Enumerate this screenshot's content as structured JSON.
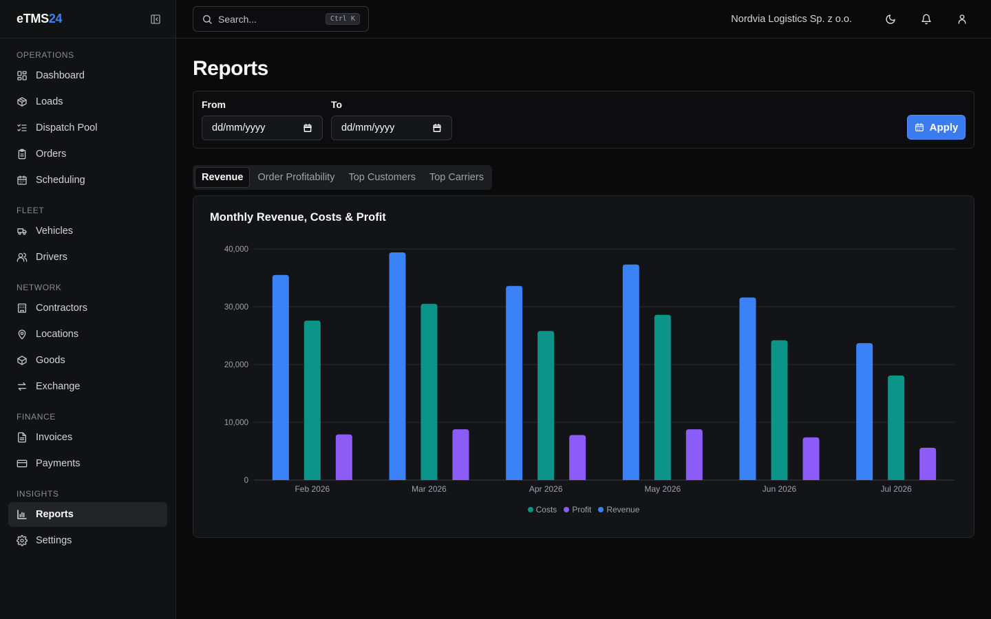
{
  "brand": {
    "name": "eTMS",
    "suffix": "24"
  },
  "sidebar": {
    "sections": [
      {
        "label": "OPERATIONS",
        "items": [
          {
            "label": "Dashboard",
            "icon": "dashboard-icon"
          },
          {
            "label": "Loads",
            "icon": "package-icon"
          },
          {
            "label": "Dispatch Pool",
            "icon": "list-checks-icon"
          },
          {
            "label": "Orders",
            "icon": "clipboard-icon"
          },
          {
            "label": "Scheduling",
            "icon": "calendar-icon"
          }
        ]
      },
      {
        "label": "FLEET",
        "items": [
          {
            "label": "Vehicles",
            "icon": "truck-icon"
          },
          {
            "label": "Drivers",
            "icon": "users-icon"
          }
        ]
      },
      {
        "label": "NETWORK",
        "items": [
          {
            "label": "Contractors",
            "icon": "building-icon"
          },
          {
            "label": "Locations",
            "icon": "map-pin-icon"
          },
          {
            "label": "Goods",
            "icon": "box-icon"
          },
          {
            "label": "Exchange",
            "icon": "exchange-icon"
          }
        ]
      },
      {
        "label": "FINANCE",
        "items": [
          {
            "label": "Invoices",
            "icon": "file-text-icon"
          },
          {
            "label": "Payments",
            "icon": "credit-card-icon"
          }
        ]
      },
      {
        "label": "INSIGHTS",
        "items": [
          {
            "label": "Reports",
            "icon": "bar-chart-icon",
            "active": true
          },
          {
            "label": "Settings",
            "icon": "gear-icon"
          }
        ]
      }
    ]
  },
  "topbar": {
    "search_placeholder": "Search...",
    "shortcut": "Ctrl K",
    "organization": "Nordvia Logistics Sp. z o.o."
  },
  "page": {
    "title": "Reports",
    "filters": {
      "from_label": "From",
      "from_value": "dd/mm/yyyy",
      "to_label": "To",
      "to_value": "dd/mm/yyyy",
      "apply_label": "Apply"
    },
    "tabs": [
      {
        "label": "Revenue",
        "active": true
      },
      {
        "label": "Order Profitability"
      },
      {
        "label": "Top Customers"
      },
      {
        "label": "Top Carriers"
      }
    ]
  },
  "colors": {
    "revenue": "#3b82f6",
    "costs": "#0d9488",
    "profit": "#8b5cf6",
    "accent": "#3b7bf0"
  },
  "chart_data": {
    "type": "bar",
    "title": "Monthly Revenue, Costs & Profit",
    "categories": [
      "Feb 2026",
      "Mar 2026",
      "Apr 2026",
      "May 2026",
      "Jun 2026",
      "Jul 2026"
    ],
    "series": [
      {
        "name": "Revenue",
        "values": [
          35500,
          39400,
          33600,
          37300,
          31600,
          23700
        ]
      },
      {
        "name": "Costs",
        "values": [
          27600,
          30500,
          25800,
          28600,
          24200,
          18100
        ]
      },
      {
        "name": "Profit",
        "values": [
          7900,
          8800,
          7800,
          8800,
          7400,
          5600
        ]
      }
    ],
    "y_ticks": [
      "0",
      "10,000",
      "20,000",
      "30,000",
      "40,000"
    ],
    "ylim": [
      0,
      40000
    ],
    "grid": true,
    "legend": {
      "position": "bottom",
      "entries": [
        "Costs",
        "Profit",
        "Revenue"
      ]
    }
  }
}
